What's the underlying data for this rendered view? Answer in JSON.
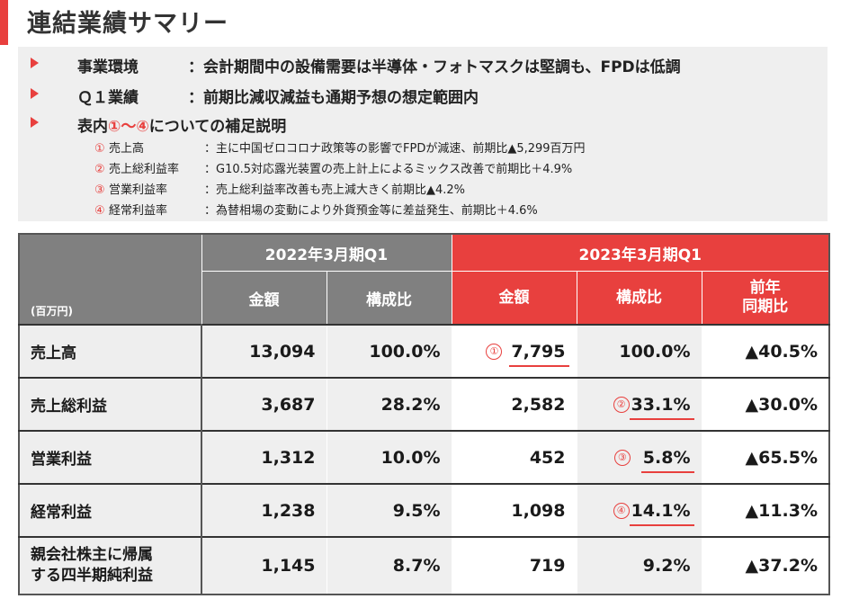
{
  "title": "連結業績サマリー",
  "colors": {
    "accent": "#e8403e",
    "header_gray": "#808080",
    "band_gray": "#efefef"
  },
  "bullets": [
    {
      "label": "事業環境",
      "text": "：会計期間中の設備需要は半導体・フォトマスクは堅調も、FPDは低調"
    },
    {
      "label": "Ｑ１業績",
      "text": "：前期比減収減益も通期予想の想定範囲内"
    },
    {
      "prefix": "表内",
      "marks": "①～④",
      "suffix": "についての補足説明"
    }
  ],
  "notes": [
    {
      "num": "①",
      "label": "売上高",
      "text": "：主に中国ゼロコロナ政策等の影響でFPDが減速、前期比▲5,299百万円"
    },
    {
      "num": "②",
      "label": "売上総利益率",
      "text": "：G10.5対応露光装置の売上計上によるミックス改善で前期比＋4.9%"
    },
    {
      "num": "③",
      "label": "営業利益率",
      "text": "：売上総利益率改善も売上減大きく前期比▲4.2%"
    },
    {
      "num": "④",
      "label": "経常利益率",
      "text": "：為替相場の変動により外貨預金等に差益発生、前期比＋4.6%"
    }
  ],
  "table": {
    "unit": "(百万円)",
    "period_prev": "2022年3月期Q1",
    "period_curr": "2023年3月期Q1",
    "col_amount": "金額",
    "col_ratio": "構成比",
    "col_yoy_line1": "前年",
    "col_yoy_line2": "同期比",
    "rows": [
      {
        "label": "売上高",
        "prev_amount": "13,094",
        "prev_ratio": "100.0%",
        "curr_amount": "7,795",
        "curr_ratio": "100.0%",
        "yoy": "▲40.5%",
        "mark": "①"
      },
      {
        "label": "売上総利益",
        "prev_amount": "3,687",
        "prev_ratio": "28.2%",
        "curr_amount": "2,582",
        "curr_ratio": "33.1%",
        "yoy": "▲30.0%",
        "mark": "②"
      },
      {
        "label": "営業利益",
        "prev_amount": "1,312",
        "prev_ratio": "10.0%",
        "curr_amount": "452",
        "curr_ratio": "5.8%",
        "yoy": "▲65.5%",
        "mark": "③"
      },
      {
        "label": "経常利益",
        "prev_amount": "1,238",
        "prev_ratio": "9.5%",
        "curr_amount": "1,098",
        "curr_ratio": "14.1%",
        "yoy": "▲11.3%",
        "mark": "④"
      },
      {
        "label_line1": "親会社株主に帰属",
        "label_line2": "する四半期純利益",
        "prev_amount": "1,145",
        "prev_ratio": "8.7%",
        "curr_amount": "719",
        "curr_ratio": "9.2%",
        "yoy": "▲37.2%"
      }
    ]
  }
}
